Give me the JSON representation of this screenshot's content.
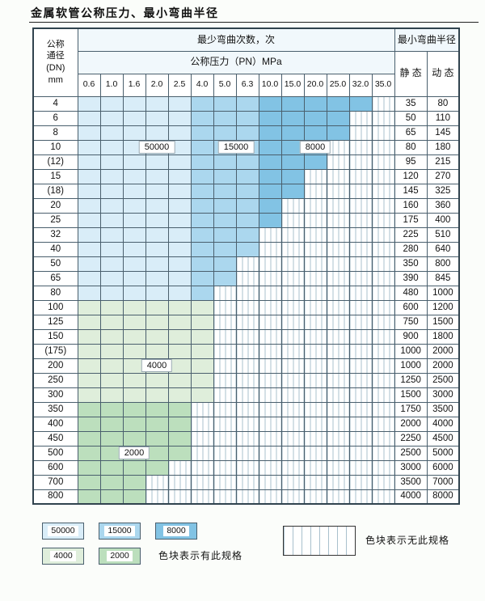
{
  "title": "金属软管公称压力、最小弯曲半径",
  "table": {
    "dn_header_lines": [
      "公称",
      "通径",
      "(DN)",
      "mm"
    ],
    "bend_times_header": "最少弯曲次数，次",
    "pressure_header": "公称压力（PN）MPa",
    "radius_header": "最小弯曲半径",
    "static_header": "静 态",
    "dynamic_header": "动 态",
    "pressures": [
      "0.6",
      "1.0",
      "1.6",
      "2.0",
      "2.5",
      "4.0",
      "5.0",
      "6.3",
      "10.0",
      "15.0",
      "20.0",
      "25.0",
      "32.0",
      "35.0"
    ],
    "shade_meaning": {
      "L": "50000",
      "M": "15000",
      "D": "8000",
      "G": "4000",
      "g": "2000",
      "X": "no-spec"
    },
    "rows": [
      {
        "dn": "4",
        "cells": "LLLLLMMMDDDDDX",
        "static": "35",
        "dynamic": "80"
      },
      {
        "dn": "6",
        "cells": "LLLLLMMMDDDDXX",
        "static": "50",
        "dynamic": "110"
      },
      {
        "dn": "8",
        "cells": "LLLLLMMMDDDDXX",
        "static": "65",
        "dynamic": "145"
      },
      {
        "dn": "10",
        "cells": "LLLLLMMMDDDXXX",
        "static": "80",
        "dynamic": "180"
      },
      {
        "dn": "(12)",
        "cells": "LLLLLMMMDDDXXX",
        "static": "95",
        "dynamic": "215"
      },
      {
        "dn": "15",
        "cells": "LLLLLMMMDDXXXX",
        "static": "120",
        "dynamic": "270"
      },
      {
        "dn": "(18)",
        "cells": "LLLLLMMMDDXXXX",
        "static": "145",
        "dynamic": "325"
      },
      {
        "dn": "20",
        "cells": "LLLLLMMMDXXXXX",
        "static": "160",
        "dynamic": "360"
      },
      {
        "dn": "25",
        "cells": "LLLLLMMMDXXXXX",
        "static": "175",
        "dynamic": "400"
      },
      {
        "dn": "32",
        "cells": "LLLLLMMMXXXXXX",
        "static": "225",
        "dynamic": "510"
      },
      {
        "dn": "40",
        "cells": "LLLLLMMMXXXXXX",
        "static": "280",
        "dynamic": "640"
      },
      {
        "dn": "50",
        "cells": "LLLLLMMXXXXXXX",
        "static": "350",
        "dynamic": "800"
      },
      {
        "dn": "65",
        "cells": "LLLLLMMXXXXXXX",
        "static": "390",
        "dynamic": "845"
      },
      {
        "dn": "80",
        "cells": "LLLLLMXXXXXXXX",
        "static": "480",
        "dynamic": "1000"
      },
      {
        "dn": "100",
        "cells": "GGGGGGXXXXXXXX",
        "static": "600",
        "dynamic": "1200"
      },
      {
        "dn": "125",
        "cells": "GGGGGGXXXXXXXX",
        "static": "750",
        "dynamic": "1500"
      },
      {
        "dn": "150",
        "cells": "GGGGGGXXXXXXXX",
        "static": "900",
        "dynamic": "1800"
      },
      {
        "dn": "(175)",
        "cells": "GGGGGGXXXXXXXX",
        "static": "1000",
        "dynamic": "2000"
      },
      {
        "dn": "200",
        "cells": "GGGGGGXXXXXXXX",
        "static": "1000",
        "dynamic": "2000"
      },
      {
        "dn": "250",
        "cells": "GGGGGGXXXXXXXX",
        "static": "1250",
        "dynamic": "2500"
      },
      {
        "dn": "300",
        "cells": "GGGGGGXXXXXXXX",
        "static": "1500",
        "dynamic": "3000"
      },
      {
        "dn": "350",
        "cells": "gggggXXXXXXXXX",
        "static": "1750",
        "dynamic": "3500"
      },
      {
        "dn": "400",
        "cells": "gggggXXXXXXXXX",
        "static": "2000",
        "dynamic": "4000"
      },
      {
        "dn": "450",
        "cells": "gggggXXXXXXXXX",
        "static": "2250",
        "dynamic": "4500"
      },
      {
        "dn": "500",
        "cells": "gggggXXXXXXXXX",
        "static": "2500",
        "dynamic": "5000"
      },
      {
        "dn": "600",
        "cells": "ggggXXXXXXXXXX",
        "static": "3000",
        "dynamic": "6000"
      },
      {
        "dn": "700",
        "cells": "gggXXXXXXXXXXX",
        "static": "3500",
        "dynamic": "7000"
      },
      {
        "dn": "800",
        "cells": "gggXXXXXXXXXXX",
        "static": "4000",
        "dynamic": "8000"
      }
    ]
  },
  "overlays": [
    {
      "label": "50000",
      "dn": "10",
      "col_start": 2,
      "col_end": 4
    },
    {
      "label": "15000",
      "dn": "10",
      "col_start": 6,
      "col_end": 7
    },
    {
      "label": "8000",
      "dn": "10",
      "col_start": 9,
      "col_end": 11
    },
    {
      "label": "4000",
      "dn": "200",
      "col_start": 2,
      "col_end": 4
    },
    {
      "label": "2000",
      "dn": "500",
      "col_start": 1,
      "col_end": 3
    }
  ],
  "legend": {
    "items": [
      {
        "key": "c50000",
        "label": "50000"
      },
      {
        "key": "c15000",
        "label": "15000"
      },
      {
        "key": "c8000",
        "label": "8000"
      },
      {
        "key": "c4000",
        "label": "4000"
      },
      {
        "key": "c2000",
        "label": "2000"
      }
    ],
    "available_text": "色块表示有此规格",
    "not_available_text": "色块表示无此规格"
  },
  "colors": {
    "c50000": "#d9edf8",
    "c15000": "#abd7ee",
    "c8000": "#82c3e4",
    "c4000": "#dfeedb",
    "c2000": "#bcdfbd",
    "hatchline": "#a9c0cd",
    "border": "#4a5f6d",
    "outer": "#30434e"
  }
}
